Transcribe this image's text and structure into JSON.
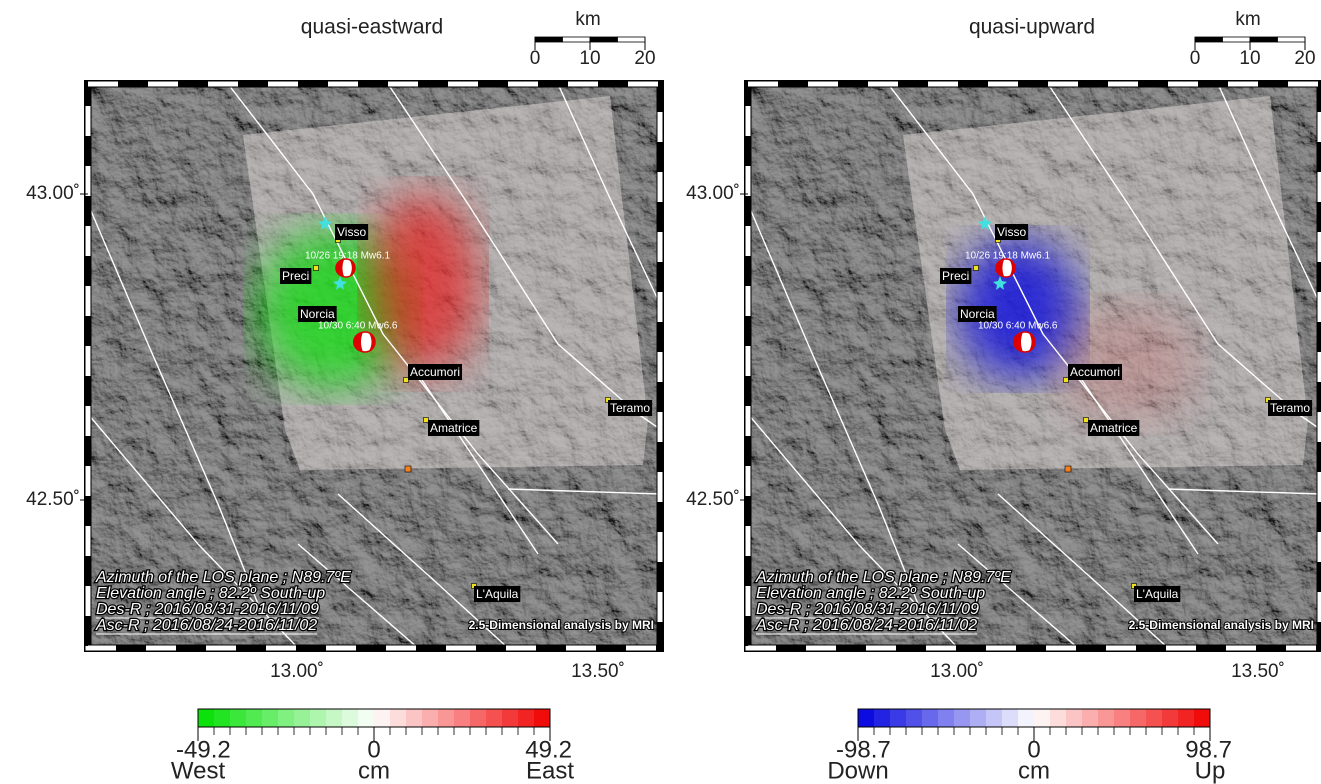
{
  "panels": [
    {
      "title": "quasi-eastward",
      "scale": {
        "unit": "km",
        "ticks": [
          0,
          10,
          20
        ]
      },
      "lat_labels": [
        "43.00˚",
        "42.50˚"
      ],
      "lon_labels": [
        "13.00˚",
        "13.50˚"
      ],
      "places": [
        "Visso",
        "Preci",
        "Norcia",
        "Accumori",
        "Amatrice",
        "Teramo",
        "L'Aquila"
      ],
      "events": [
        "10/26 19:18 Mw6.1",
        "10/30 6:40 Mw6.6"
      ],
      "notes": [
        "Azimuth of the LOS plane ; N89.7ºE",
        "Elevation angle ; 82.2º South-up",
        "Des-R ; 2016/08/31-2016/11/09",
        "Asc-R ; 2016/08/24-2016/11/02"
      ],
      "credit": "2.5-Dimensional analysis by MRI",
      "colorbar": {
        "min": -49.2,
        "mid": 0,
        "max": 49.2,
        "low_label": "West",
        "unit": "cm",
        "high_label": "East",
        "colors": [
          "#00e000",
          "#ffffff",
          "#f00000"
        ]
      }
    },
    {
      "title": "quasi-upward",
      "scale": {
        "unit": "km",
        "ticks": [
          0,
          10,
          20
        ]
      },
      "lat_labels": [
        "43.00˚",
        "42.50˚"
      ],
      "lon_labels": [
        "13.00˚",
        "13.50˚"
      ],
      "places": [
        "Visso",
        "Preci",
        "Norcia",
        "Accumori",
        "Amatrice",
        "Teramo",
        "L'Aquila"
      ],
      "events": [
        "10/26 19:18 Mw6.1",
        "10/30 6:40 Mw6.6"
      ],
      "notes": [
        "Azimuth of the LOS plane ; N89.7ºE",
        "Elevation angle ; 82.2º South-up",
        "Des-R ; 2016/08/31-2016/11/09",
        "Asc-R ; 2016/08/24-2016/11/02"
      ],
      "credit": "2.5-Dimensional analysis by MRI",
      "colorbar": {
        "min": -98.7,
        "mid": 0,
        "max": 98.7,
        "low_label": "Down",
        "unit": "cm",
        "high_label": "Up",
        "colors": [
          "#0000e0",
          "#ffffff",
          "#f00000"
        ]
      }
    }
  ]
}
